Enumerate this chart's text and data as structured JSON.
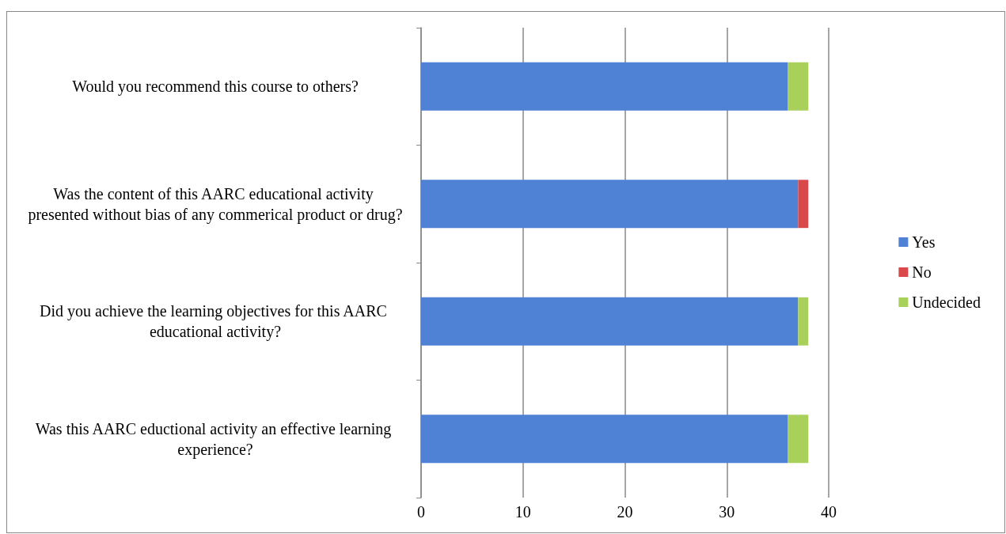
{
  "chart_data": {
    "type": "bar",
    "orientation": "horizontal",
    "stacked": true,
    "categories": [
      "Would you recommend this course to others?",
      "Was the content of this AARC educational activity presented without bias of any commerical product or drug?",
      "Did you achieve the learning objectives for this AARC educational activity?",
      "Was this AARC eductional activity an effective learning experience?"
    ],
    "series": [
      {
        "name": "Yes",
        "color": "#4f81d5",
        "values": [
          36,
          37,
          37,
          36
        ]
      },
      {
        "name": "No",
        "color": "#d9484a",
        "values": [
          0,
          1,
          0,
          0
        ]
      },
      {
        "name": "Undecided",
        "color": "#a8d05a",
        "values": [
          2,
          0,
          1,
          2
        ]
      }
    ],
    "xlim": [
      0,
      40
    ],
    "xticks": [
      0,
      10,
      20,
      30,
      40
    ],
    "grid": "x",
    "legend": "right"
  }
}
